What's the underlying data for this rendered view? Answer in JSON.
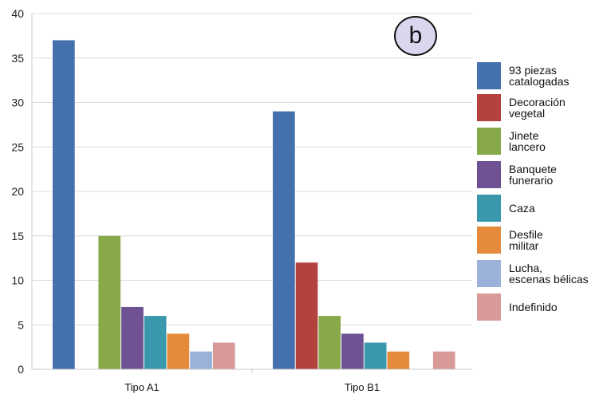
{
  "badge": "b",
  "chart_data": {
    "type": "bar",
    "categories": [
      "Tipo A1",
      "Tipo B1"
    ],
    "ylim": [
      0,
      40
    ],
    "yticks": [
      0,
      5,
      10,
      15,
      20,
      25,
      30,
      35,
      40
    ],
    "grid": "horizontal",
    "legend_position": "right",
    "series": [
      {
        "name": "93 piezas\ncatalogadas",
        "color": "#4470ad",
        "values": [
          37,
          29
        ]
      },
      {
        "name": "Decoración\nvegetal",
        "color": "#b3423f",
        "values": [
          0,
          12
        ]
      },
      {
        "name": "Jinete\nlancero",
        "color": "#88a94a",
        "values": [
          15,
          6
        ]
      },
      {
        "name": "Banquete\nfunerario",
        "color": "#6e5293",
        "values": [
          7,
          4
        ]
      },
      {
        "name": "Caza",
        "color": "#3a98ad",
        "values": [
          6,
          3
        ]
      },
      {
        "name": "Desfile\nmilitar",
        "color": "#e58a3a",
        "values": [
          4,
          2
        ]
      },
      {
        "name": "Lucha,\nescenas bélicas",
        "color": "#9bb1d8",
        "values": [
          2,
          0
        ]
      },
      {
        "name": "Indefinido",
        "color": "#d89a99",
        "values": [
          3,
          2
        ]
      }
    ]
  }
}
